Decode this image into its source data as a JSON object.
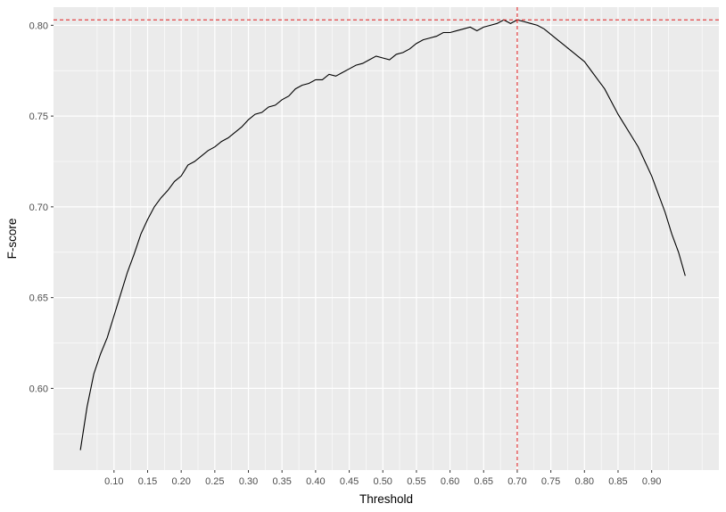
{
  "chart_data": {
    "type": "line",
    "title": "",
    "xlabel": "Threshold",
    "ylabel": "F-score",
    "xlim": [
      0.01,
      1.0
    ],
    "ylim": [
      0.555,
      0.81
    ],
    "x_ticks": [
      0.1,
      0.15,
      0.2,
      0.25,
      0.3,
      0.35,
      0.4,
      0.45,
      0.5,
      0.55,
      0.6,
      0.65,
      0.7,
      0.75,
      0.8,
      0.85,
      0.9
    ],
    "x_tick_labels": [
      "0.10",
      "0.15",
      "0.20",
      "0.25",
      "0.30",
      "0.35",
      "0.40",
      "0.45",
      "0.50",
      "0.55",
      "0.60",
      "0.65",
      "0.70",
      "0.75",
      "0.80",
      "0.85",
      "0.90"
    ],
    "y_ticks": [
      0.6,
      0.65,
      0.7,
      0.75,
      0.8
    ],
    "y_tick_labels": [
      "0.60",
      "0.65",
      "0.70",
      "0.75",
      "0.80"
    ],
    "grid": true,
    "colors": {
      "panel": "#ebebeb",
      "grid": "#ffffff",
      "line": "#000000",
      "reference": "#e31a1c"
    },
    "reference_lines": {
      "h": 0.803,
      "v": 0.7
    },
    "series": [
      {
        "x": [
          0.05,
          0.06,
          0.07,
          0.08,
          0.09,
          0.1,
          0.11,
          0.12,
          0.13,
          0.14,
          0.15,
          0.16,
          0.17,
          0.18,
          0.19,
          0.2,
          0.21,
          0.22,
          0.23,
          0.24,
          0.25,
          0.26,
          0.27,
          0.28,
          0.29,
          0.3,
          0.31,
          0.32,
          0.33,
          0.34,
          0.35,
          0.36,
          0.37,
          0.38,
          0.39,
          0.4,
          0.41,
          0.42,
          0.43,
          0.44,
          0.45,
          0.46,
          0.47,
          0.48,
          0.49,
          0.5,
          0.51,
          0.52,
          0.53,
          0.54,
          0.55,
          0.56,
          0.57,
          0.58,
          0.59,
          0.6,
          0.61,
          0.62,
          0.63,
          0.64,
          0.65,
          0.66,
          0.67,
          0.68,
          0.69,
          0.7,
          0.71,
          0.72,
          0.73,
          0.74,
          0.75,
          0.76,
          0.77,
          0.78,
          0.79,
          0.8,
          0.81,
          0.82,
          0.83,
          0.84,
          0.85,
          0.86,
          0.87,
          0.88,
          0.89,
          0.9,
          0.91,
          0.92,
          0.93,
          0.94,
          0.95
        ],
        "values": [
          0.566,
          0.59,
          0.608,
          0.619,
          0.628,
          0.64,
          0.652,
          0.664,
          0.674,
          0.685,
          0.693,
          0.7,
          0.705,
          0.709,
          0.714,
          0.717,
          0.723,
          0.725,
          0.728,
          0.731,
          0.733,
          0.736,
          0.738,
          0.741,
          0.744,
          0.748,
          0.751,
          0.752,
          0.755,
          0.756,
          0.759,
          0.761,
          0.765,
          0.767,
          0.768,
          0.77,
          0.77,
          0.773,
          0.772,
          0.774,
          0.776,
          0.778,
          0.779,
          0.781,
          0.783,
          0.782,
          0.781,
          0.784,
          0.785,
          0.787,
          0.79,
          0.792,
          0.793,
          0.794,
          0.796,
          0.796,
          0.797,
          0.798,
          0.799,
          0.797,
          0.799,
          0.8,
          0.801,
          0.803,
          0.801,
          0.803,
          0.802,
          0.801,
          0.8,
          0.798,
          0.795,
          0.792,
          0.789,
          0.786,
          0.783,
          0.78,
          0.775,
          0.77,
          0.765,
          0.758,
          0.751,
          0.745,
          0.739,
          0.733,
          0.725,
          0.717,
          0.707,
          0.697,
          0.685,
          0.675,
          0.662
        ]
      }
    ]
  }
}
